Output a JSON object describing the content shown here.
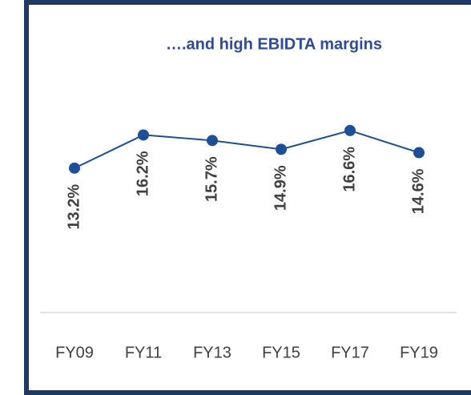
{
  "chart_data": {
    "type": "line",
    "title": "….and high EBIDTA margins",
    "categories": [
      "FY09",
      "FY11",
      "FY13",
      "FY15",
      "FY17",
      "FY19"
    ],
    "series": [
      {
        "color": "#1f4e99",
        "values": [
          13.2,
          16.2,
          15.7,
          14.9,
          16.6,
          14.6
        ],
        "value_labels": [
          "13.2%",
          "16.2%",
          "15.7%",
          "14.9%",
          "16.6%",
          "14.6%"
        ]
      }
    ]
  }
}
